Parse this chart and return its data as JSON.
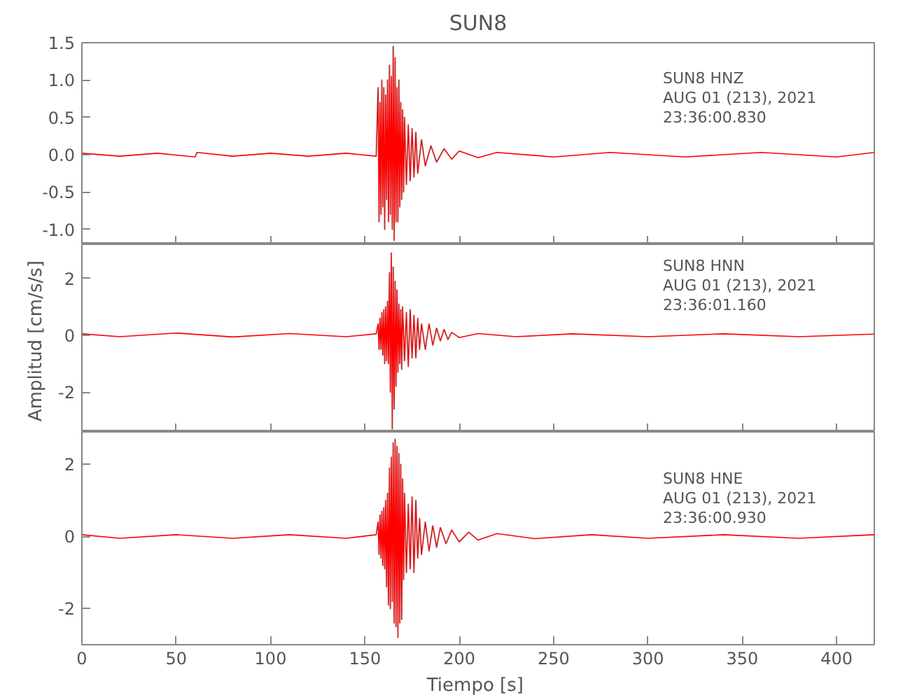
{
  "chart_data": [
    {
      "type": "line",
      "title": "SUN8",
      "annotations": [
        "SUN8   HNZ",
        "AUG 01 (213), 2021",
        "23:36:00.830"
      ],
      "tick_labels": "y",
      "grid": false,
      "marker": "none",
      "line_style": "solid",
      "xlim": [
        0,
        420
      ],
      "xticks": [
        {
          "value": 0,
          "label": null
        },
        {
          "value": 50,
          "label": null
        },
        {
          "value": 100,
          "label": null
        },
        {
          "value": 150,
          "label": null
        },
        {
          "value": 200,
          "label": null
        },
        {
          "value": 250,
          "label": null
        },
        {
          "value": 300,
          "label": null
        },
        {
          "value": 350,
          "label": null
        },
        {
          "value": 400,
          "label": null
        }
      ],
      "ylim": [
        -1.2,
        1.5
      ],
      "yticks": [
        {
          "value": -1.0,
          "label": "-1.0"
        },
        {
          "value": -0.5,
          "label": "-0.5"
        },
        {
          "value": 0,
          "label": "0.0"
        },
        {
          "value": 0.5,
          "label": "0.5"
        },
        {
          "value": 1.0,
          "label": "1.0"
        },
        {
          "value": 1.5,
          "label": "1.5"
        }
      ],
      "series": [
        {
          "color": "#ff0000",
          "x": [
            0,
            20,
            40,
            60,
            61,
            80,
            100,
            120,
            140,
            156,
            157,
            157.5,
            158,
            158.5,
            159,
            159.5,
            160,
            160.5,
            161,
            161.5,
            162,
            162.5,
            163,
            163.5,
            164,
            164.5,
            165,
            165.5,
            166,
            166.5,
            167,
            167.5,
            168,
            168.5,
            169,
            169.5,
            170,
            170.5,
            171,
            172,
            173,
            174,
            175,
            176,
            177,
            178,
            180,
            182,
            185,
            188,
            192,
            196,
            200,
            210,
            220,
            250,
            280,
            320,
            360,
            400,
            420
          ],
          "values": [
            0.02,
            -0.02,
            0.02,
            -0.03,
            0.03,
            -0.02,
            0.02,
            -0.02,
            0.02,
            -0.02,
            0.9,
            -0.9,
            0.7,
            -0.8,
            1.0,
            -0.7,
            0.9,
            -1.0,
            0.8,
            -0.6,
            1.0,
            -0.9,
            1.2,
            -0.8,
            1.05,
            -1.0,
            1.45,
            -1.15,
            1.3,
            -0.9,
            0.9,
            -0.9,
            1.0,
            -0.7,
            0.7,
            -0.6,
            0.6,
            -0.5,
            0.5,
            -0.4,
            0.4,
            -0.35,
            0.35,
            -0.3,
            0.3,
            -0.25,
            0.2,
            -0.15,
            0.12,
            -0.1,
            0.08,
            -0.06,
            0.05,
            -0.04,
            0.03,
            -0.03,
            0.03,
            -0.03,
            0.03,
            -0.03,
            0.03
          ]
        }
      ]
    },
    {
      "type": "line",
      "ylabel": "Amplitud  [cm/s/s]",
      "annotations": [
        "SUN8   HNN",
        "AUG 01 (213), 2021",
        "23:36:01.160"
      ],
      "tick_labels": "y",
      "grid": false,
      "marker": "none",
      "line_style": "solid",
      "xlim": [
        0,
        420
      ],
      "xticks": [
        {
          "value": 0,
          "label": null
        },
        {
          "value": 50,
          "label": null
        },
        {
          "value": 100,
          "label": null
        },
        {
          "value": 150,
          "label": null
        },
        {
          "value": 200,
          "label": null
        },
        {
          "value": 250,
          "label": null
        },
        {
          "value": 300,
          "label": null
        },
        {
          "value": 350,
          "label": null
        },
        {
          "value": 400,
          "label": null
        }
      ],
      "ylim": [
        -3.4,
        3.2
      ],
      "yticks": [
        -2,
        0,
        2
      ],
      "series": [
        {
          "color": "#ff0000",
          "x": [
            0,
            20,
            50,
            80,
            110,
            140,
            156,
            157,
            157.5,
            158,
            158.5,
            159,
            159.5,
            160,
            160.5,
            161,
            161.5,
            162,
            162.5,
            163,
            163.5,
            164,
            164.5,
            165,
            165.5,
            166,
            166.5,
            167,
            167.5,
            168,
            168.5,
            169,
            169.5,
            170,
            171,
            172,
            173,
            174,
            175,
            176,
            177,
            178,
            179,
            180,
            182,
            184,
            186,
            188,
            190,
            192,
            194,
            196,
            200,
            210,
            230,
            260,
            300,
            340,
            380,
            420
          ],
          "values": [
            0.05,
            -0.05,
            0.08,
            -0.06,
            0.06,
            -0.05,
            0.05,
            0.4,
            -0.5,
            0.6,
            -0.5,
            0.8,
            -0.7,
            0.9,
            -1.0,
            1.0,
            -0.9,
            1.2,
            -1.0,
            2.2,
            -2.0,
            2.9,
            -3.3,
            2.4,
            -2.6,
            1.9,
            -1.8,
            1.6,
            -1.3,
            1.1,
            -1.0,
            0.9,
            -1.2,
            1.0,
            -0.9,
            0.8,
            -1.1,
            0.9,
            -0.8,
            0.7,
            -0.8,
            0.6,
            -0.5,
            0.4,
            -0.5,
            0.4,
            -0.35,
            0.25,
            -0.2,
            0.2,
            -0.15,
            0.1,
            -0.08,
            0.06,
            -0.05,
            0.05,
            -0.05,
            0.05,
            -0.05,
            0.04
          ]
        }
      ]
    },
    {
      "type": "line",
      "xlabel": "Tiempo  [s]",
      "annotations": [
        "SUN8   HNE",
        "AUG 01 (213), 2021",
        "23:36:00.930"
      ],
      "grid": false,
      "marker": "none",
      "line_style": "solid",
      "xlim": [
        0,
        420
      ],
      "xticks": [
        0,
        50,
        100,
        150,
        200,
        250,
        300,
        350,
        400
      ],
      "ylim": [
        -3.0,
        2.9
      ],
      "yticks": [
        -2,
        0,
        2
      ],
      "series": [
        {
          "color": "#ff0000",
          "x": [
            0,
            20,
            50,
            80,
            110,
            140,
            156,
            157,
            157.5,
            158,
            158.5,
            159,
            159.5,
            160,
            160.5,
            161,
            161.5,
            162,
            162.5,
            163,
            163.5,
            164,
            164.5,
            165,
            165.5,
            166,
            166.5,
            167,
            167.5,
            168,
            168.5,
            169,
            169.5,
            170,
            170.5,
            171,
            172,
            173,
            174,
            175,
            176,
            177,
            178,
            179,
            180,
            182,
            184,
            186,
            188,
            190,
            193,
            196,
            200,
            205,
            210,
            220,
            240,
            270,
            300,
            340,
            380,
            420
          ],
          "values": [
            0.05,
            -0.05,
            0.05,
            -0.05,
            0.05,
            -0.05,
            0.05,
            0.4,
            -0.5,
            0.6,
            -0.6,
            0.7,
            -0.8,
            0.8,
            -0.9,
            1.0,
            -1.4,
            1.2,
            -1.9,
            1.9,
            -2.0,
            2.2,
            -1.8,
            2.6,
            -2.4,
            2.7,
            -2.5,
            2.5,
            -2.8,
            2.3,
            -2.4,
            2.0,
            -2.3,
            1.6,
            -1.2,
            1.2,
            -1.0,
            0.9,
            -0.9,
            1.1,
            -1.0,
            1.0,
            -0.6,
            0.5,
            -0.5,
            0.4,
            -0.4,
            0.3,
            -0.3,
            0.25,
            -0.2,
            0.18,
            -0.15,
            0.12,
            -0.1,
            0.08,
            -0.06,
            0.05,
            -0.05,
            0.05,
            -0.05,
            0.05
          ]
        }
      ]
    }
  ]
}
